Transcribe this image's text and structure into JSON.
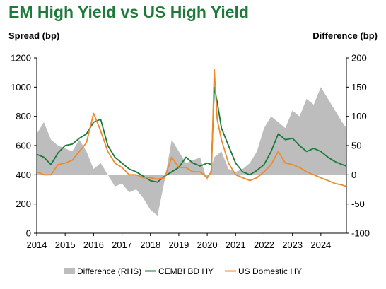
{
  "chart_data": {
    "type": "line",
    "title": "EM High Yield vs US High Yield",
    "ylabel": "Spread (bp)",
    "y2label": "Difference (bp)",
    "ylim": [
      0,
      1200
    ],
    "y2lim": [
      -100,
      200
    ],
    "y_ticks": [
      "0",
      "200",
      "400",
      "600",
      "800",
      "1000",
      "1200"
    ],
    "y2_ticks": [
      "-100",
      "-50",
      "0",
      "50",
      "100",
      "150",
      "200"
    ],
    "x_ticks": [
      "2014",
      "2015",
      "2016",
      "2017",
      "2018",
      "2019",
      "2020",
      "2021",
      "2022",
      "2023",
      "2024"
    ],
    "xlim": [
      2014.0,
      2024.9
    ],
    "legend_position": "bottom",
    "series": [
      {
        "name": "Difference (RHS)",
        "kind": "area",
        "axis": "right",
        "color": "#bdbdbd",
        "x": [
          2014.0,
          2014.25,
          2014.5,
          2014.75,
          2015.0,
          2015.25,
          2015.5,
          2015.75,
          2016.0,
          2016.25,
          2016.5,
          2016.75,
          2017.0,
          2017.25,
          2017.5,
          2017.75,
          2018.0,
          2018.25,
          2018.5,
          2018.75,
          2019.0,
          2019.25,
          2019.5,
          2019.75,
          2020.0,
          2020.25,
          2020.5,
          2020.75,
          2021.0,
          2021.25,
          2021.5,
          2021.75,
          2022.0,
          2022.25,
          2022.5,
          2022.75,
          2023.0,
          2023.25,
          2023.5,
          2023.75,
          2024.0,
          2024.25,
          2024.5,
          2024.75,
          2024.9
        ],
        "values": [
          70,
          90,
          60,
          50,
          45,
          40,
          60,
          40,
          10,
          20,
          0,
          -20,
          -15,
          -30,
          -25,
          -40,
          -60,
          -70,
          -10,
          60,
          40,
          20,
          25,
          30,
          -10,
          30,
          40,
          10,
          5,
          10,
          20,
          40,
          80,
          100,
          90,
          80,
          110,
          100,
          130,
          120,
          150,
          130,
          110,
          90,
          80
        ]
      },
      {
        "name": "CEMBI BD HY",
        "kind": "line",
        "axis": "left",
        "color": "#1a7a3a",
        "x": [
          2014.0,
          2014.25,
          2014.5,
          2014.75,
          2015.0,
          2015.25,
          2015.5,
          2015.75,
          2016.0,
          2016.25,
          2016.5,
          2016.75,
          2017.0,
          2017.25,
          2017.5,
          2017.75,
          2018.0,
          2018.25,
          2018.5,
          2018.75,
          2019.0,
          2019.25,
          2019.5,
          2019.75,
          2020.0,
          2020.15,
          2020.25,
          2020.35,
          2020.5,
          2020.75,
          2021.0,
          2021.25,
          2021.5,
          2021.75,
          2022.0,
          2022.25,
          2022.5,
          2022.75,
          2023.0,
          2023.25,
          2023.5,
          2023.75,
          2024.0,
          2024.25,
          2024.5,
          2024.75,
          2024.9
        ],
        "values": [
          540,
          520,
          470,
          550,
          600,
          610,
          650,
          680,
          760,
          780,
          600,
          520,
          480,
          440,
          420,
          390,
          360,
          350,
          390,
          420,
          450,
          520,
          480,
          460,
          480,
          470,
          1000,
          900,
          720,
          600,
          480,
          420,
          400,
          430,
          470,
          560,
          680,
          640,
          650,
          600,
          560,
          580,
          560,
          520,
          490,
          470,
          460
        ]
      },
      {
        "name": "US Domestic HY",
        "kind": "line",
        "axis": "left",
        "color": "#ee8a2c",
        "x": [
          2014.0,
          2014.25,
          2014.5,
          2014.75,
          2015.0,
          2015.25,
          2015.5,
          2015.75,
          2016.0,
          2016.25,
          2016.5,
          2016.75,
          2017.0,
          2017.25,
          2017.5,
          2017.75,
          2018.0,
          2018.25,
          2018.5,
          2018.75,
          2019.0,
          2019.25,
          2019.5,
          2019.75,
          2020.0,
          2020.15,
          2020.25,
          2020.35,
          2020.5,
          2020.75,
          2021.0,
          2021.25,
          2021.5,
          2021.75,
          2022.0,
          2022.25,
          2022.5,
          2022.75,
          2023.0,
          2023.25,
          2023.5,
          2023.75,
          2024.0,
          2024.25,
          2024.5,
          2024.75,
          2024.9
        ],
        "values": [
          420,
          400,
          400,
          470,
          480,
          500,
          560,
          620,
          820,
          700,
          560,
          480,
          450,
          400,
          400,
          380,
          380,
          370,
          380,
          520,
          450,
          450,
          420,
          420,
          380,
          420,
          1120,
          780,
          640,
          480,
          400,
          380,
          360,
          380,
          420,
          470,
          560,
          480,
          470,
          450,
          420,
          400,
          380,
          360,
          340,
          330,
          320
        ]
      }
    ]
  }
}
